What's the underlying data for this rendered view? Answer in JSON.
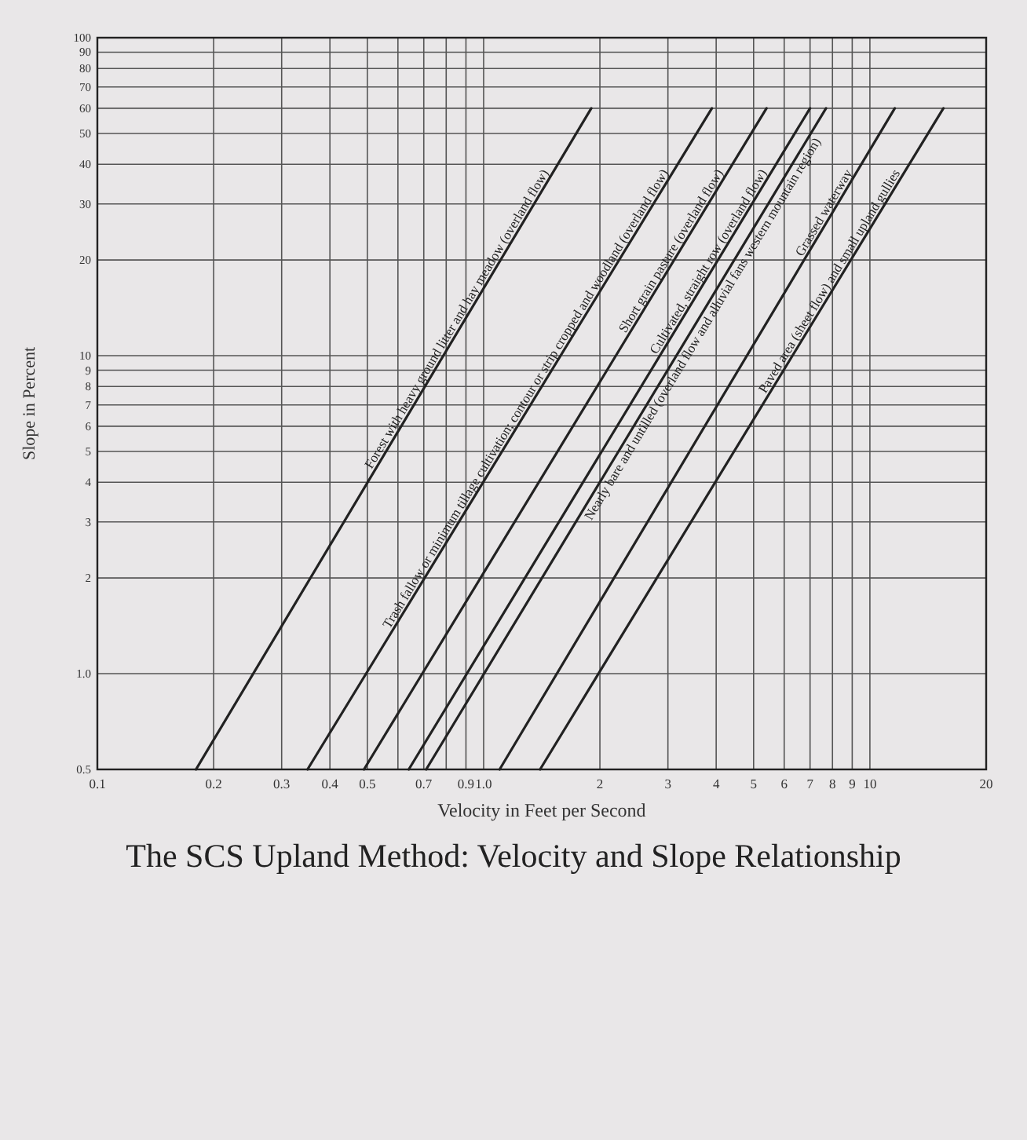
{
  "chart_data": {
    "type": "line",
    "title": "The SCS Upland Method: Velocity and Slope Relationship",
    "xlabel": "Velocity in Feet per Second",
    "ylabel": "Slope in Percent",
    "log": "xy",
    "grid": true,
    "xlim": [
      0.1,
      20
    ],
    "ylim": [
      0.5,
      100
    ],
    "xticks": [
      0.1,
      0.2,
      0.3,
      0.4,
      0.5,
      {
        "value": 0.6,
        "label": null
      },
      0.7,
      {
        "value": 0.8,
        "label": null
      },
      0.9,
      {
        "value": 1,
        "label": "1.0"
      },
      2,
      3,
      4,
      5,
      6,
      7,
      8,
      9,
      10,
      20
    ],
    "yticks": [
      0.5,
      {
        "value": 1,
        "label": "1.0"
      },
      2,
      3,
      4,
      5,
      6,
      7,
      8,
      9,
      10,
      20,
      30,
      40,
      50,
      60,
      70,
      80,
      90,
      100
    ],
    "series": [
      {
        "name": "Forest with heavy ground litter and hay meadow (overland flow)",
        "color": "#222222",
        "x": [
          0.18,
          1.9
        ],
        "values": [
          0.5,
          60
        ]
      },
      {
        "name": "Trash fallow or minimum tillage cultivation; contour or strip cropped and woodland (overland flow)",
        "color": "#222222",
        "x": [
          0.35,
          3.9
        ],
        "values": [
          0.5,
          60
        ]
      },
      {
        "name": "Short grain pasture (overland flow)",
        "color": "#222222",
        "x": [
          0.49,
          5.4
        ],
        "values": [
          0.5,
          60
        ]
      },
      {
        "name": "Cultivated, straight row (overland flow)",
        "color": "#222222",
        "x": [
          0.64,
          7
        ],
        "values": [
          0.5,
          60
        ]
      },
      {
        "name": "Nearly bare and untilled (overland flow and alluvial fans western mountain region)",
        "color": "#222222",
        "x": [
          0.71,
          7.7
        ],
        "values": [
          0.5,
          60
        ]
      },
      {
        "name": "Grassed waterway",
        "color": "#222222",
        "x": [
          1.1,
          11.6
        ],
        "values": [
          0.5,
          60
        ]
      },
      {
        "name": "Paved area (sheet flow) and small upland gullies",
        "color": "#222222",
        "x": [
          1.4,
          15.5
        ],
        "values": [
          0.5,
          60
        ]
      }
    ]
  }
}
